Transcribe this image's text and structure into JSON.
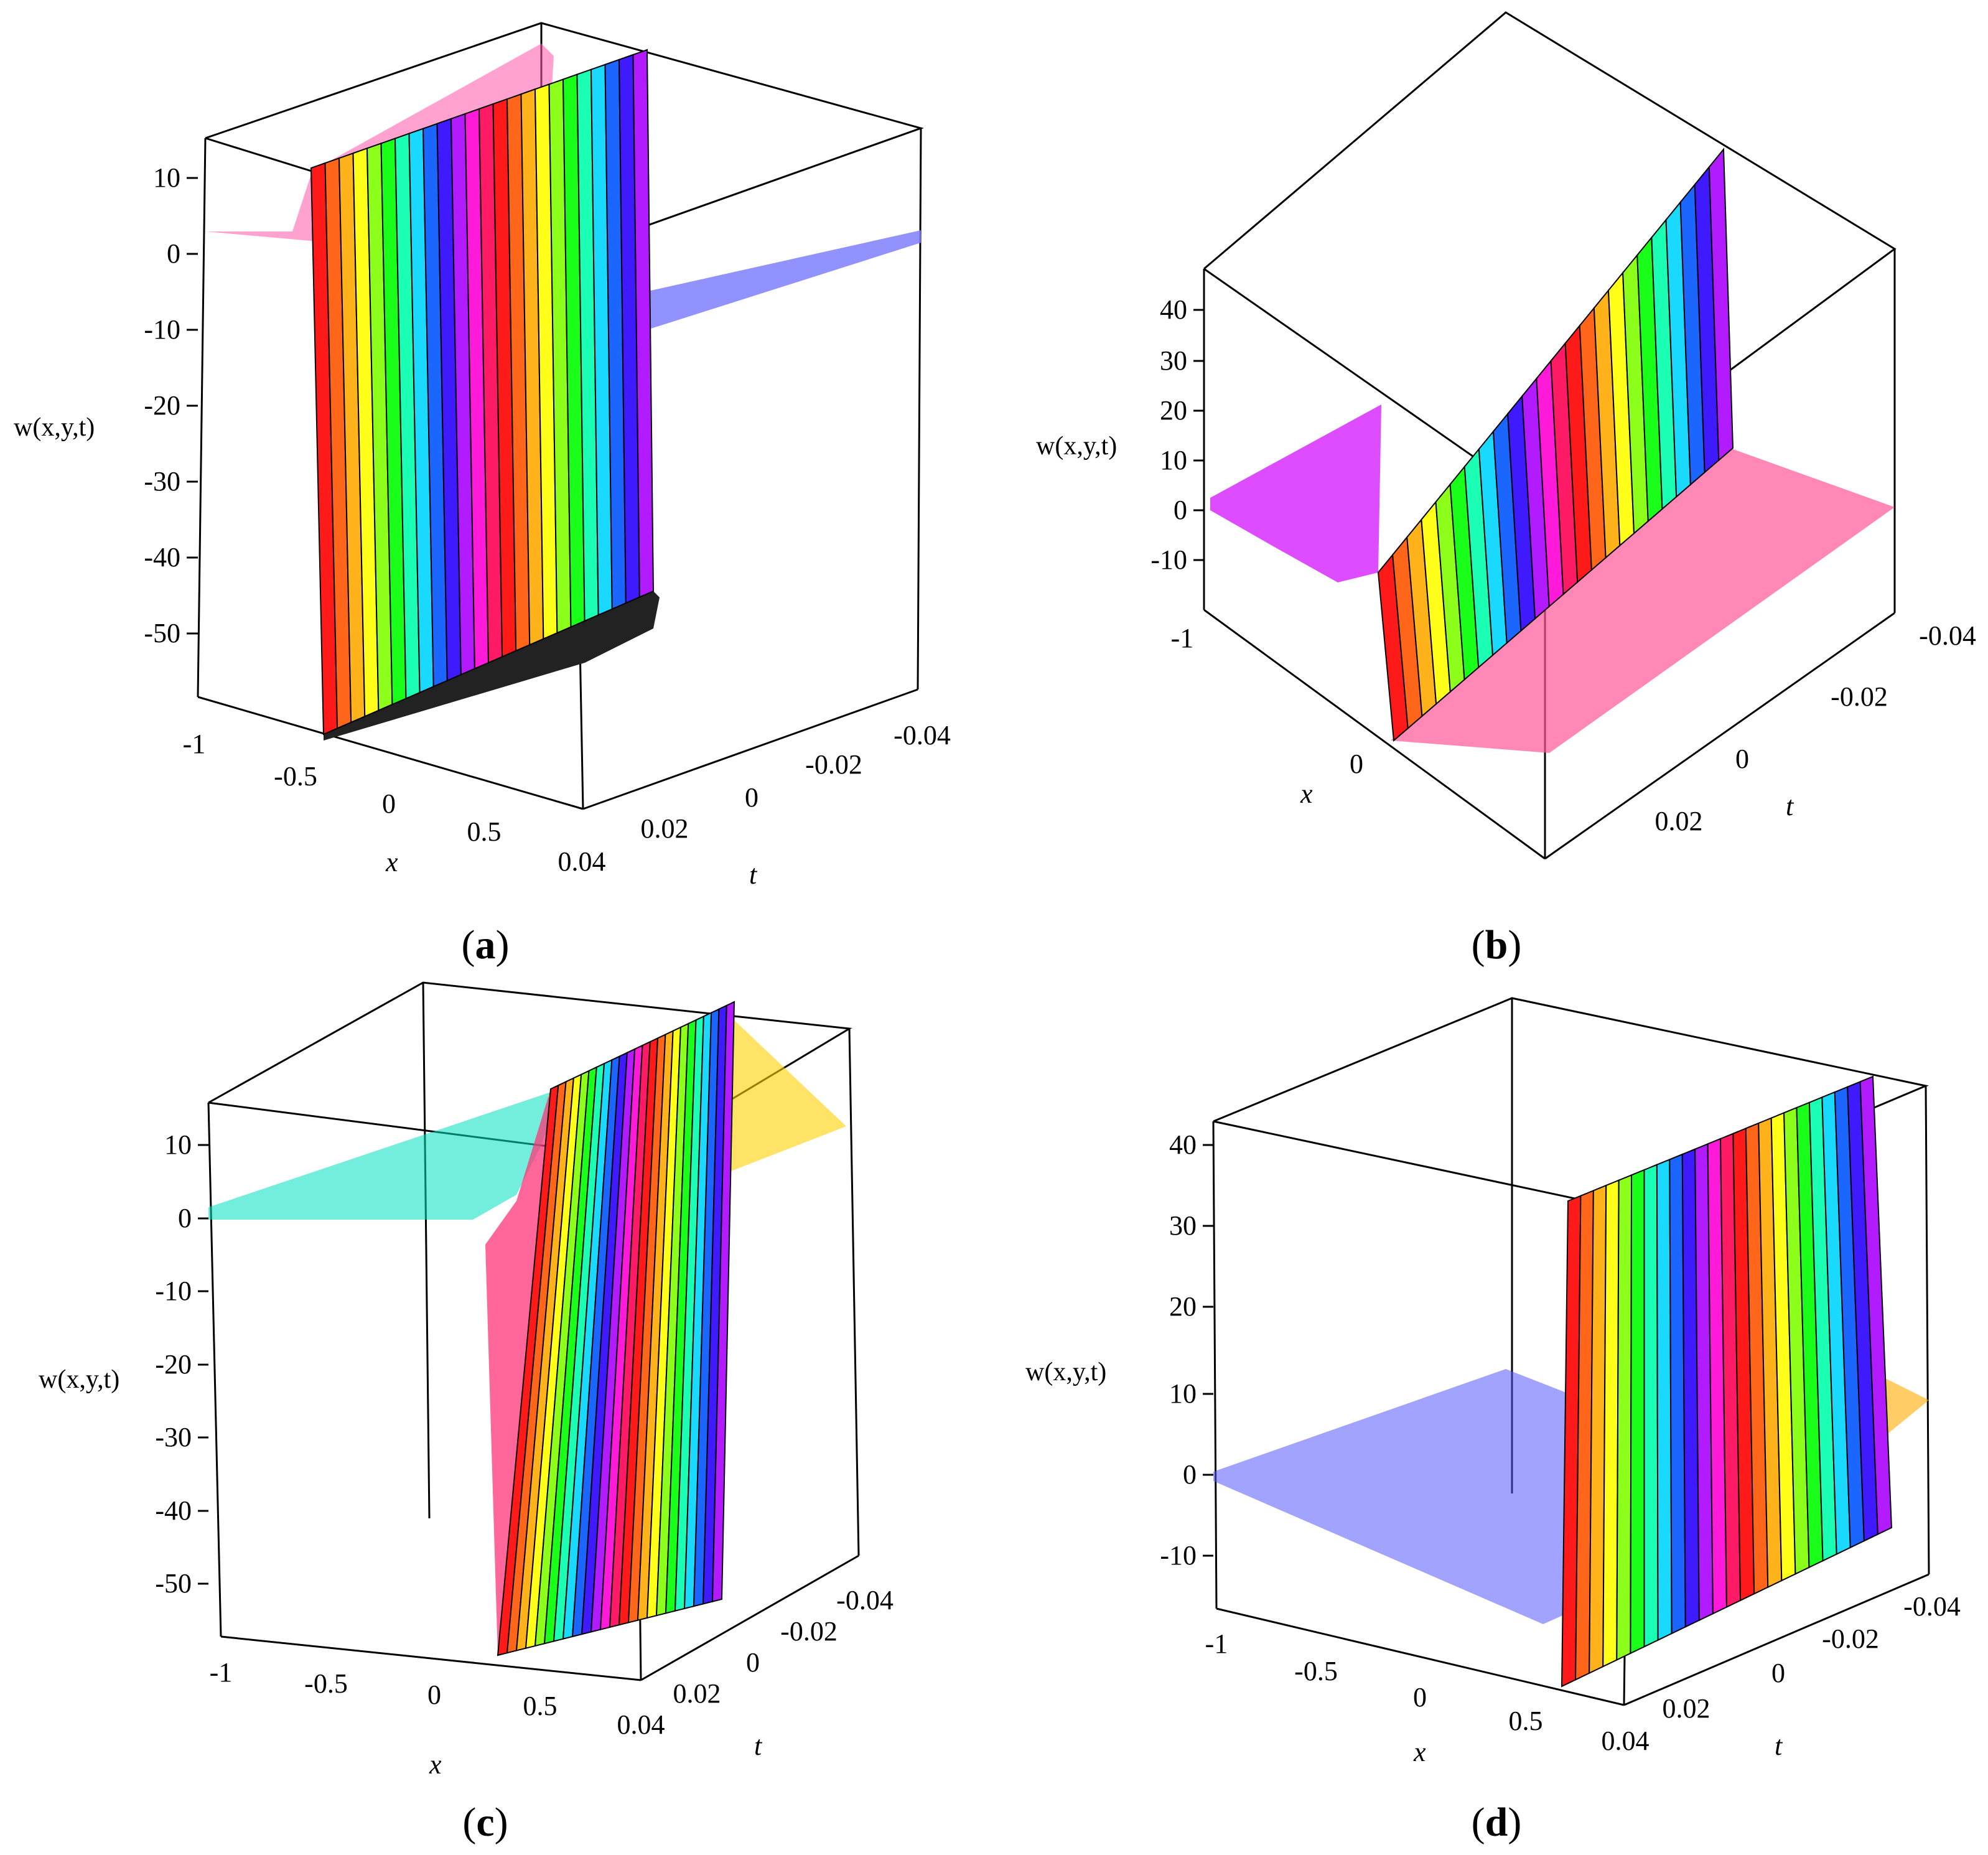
{
  "chart_data": [
    {
      "panel": "a",
      "type": "surface3d",
      "caption_letter": "a",
      "zlabel": "w(x,y,t)",
      "xlabel": "x",
      "tlabel": "t",
      "x_ticks": [
        "-1",
        "-0.5",
        "0",
        "0.5"
      ],
      "t_ticks": [
        "0.04",
        "0.02",
        "0",
        "-0.02",
        "-0.04"
      ],
      "z_ticks": [
        "10",
        "0",
        "-10",
        "-20",
        "-30",
        "-40",
        "-50"
      ],
      "x_range": [
        -1,
        1
      ],
      "t_range": [
        -0.04,
        0.04
      ],
      "z_range": [
        -58,
        15
      ],
      "kink_x": -0.35,
      "plateau_before": 1.5,
      "peak": 15,
      "trough": -57,
      "plateau_after": -3
    },
    {
      "panel": "b",
      "type": "surface3d",
      "caption_letter": "b",
      "zlabel": "w(x,y,t)",
      "xlabel": "x",
      "tlabel": "t",
      "x_ticks": [
        "-1",
        "0"
      ],
      "t_ticks": [
        "0.02",
        "0",
        "-0.02",
        "-0.04"
      ],
      "z_ticks": [
        "40",
        "30",
        "20",
        "10",
        "0",
        "-10"
      ],
      "x_range": [
        -1,
        1
      ],
      "t_range": [
        -0.04,
        0.04
      ],
      "z_range": [
        -14,
        42
      ],
      "kink_x": 0.05,
      "plateau_before": 1.5,
      "trough": -13,
      "peak": 41,
      "plateau_after": 3
    },
    {
      "panel": "c",
      "type": "surface3d",
      "caption_letter": "c",
      "zlabel": "w(x,y,t)",
      "xlabel": "x",
      "tlabel": "t",
      "x_ticks": [
        "-1",
        "-0.5",
        "0",
        "0.5"
      ],
      "t_ticks": [
        "0.04",
        "0.02",
        "0",
        "-0.02",
        "-0.04"
      ],
      "z_ticks": [
        "10",
        "0",
        "-10",
        "-20",
        "-30",
        "-40",
        "-50"
      ],
      "x_range": [
        -1,
        1
      ],
      "t_range": [
        -0.04,
        0.04
      ],
      "z_range": [
        -58,
        15
      ],
      "kink_x": 0.2,
      "plateau_before": 1.5,
      "trough": -57,
      "peak": 15,
      "plateau_after": 2
    },
    {
      "panel": "d",
      "type": "surface3d",
      "caption_letter": "d",
      "zlabel": "w(x,y,t)",
      "xlabel": "x",
      "tlabel": "t",
      "x_ticks": [
        "-1",
        "-0.5",
        "0",
        "0.5"
      ],
      "t_ticks": [
        "0.04",
        "0.02",
        "0",
        "-0.02",
        "-0.04"
      ],
      "z_ticks": [
        "40",
        "30",
        "20",
        "10",
        "0",
        "-10"
      ],
      "x_range": [
        -1,
        1
      ],
      "t_range": [
        -0.04,
        0.04
      ],
      "z_range": [
        -14,
        42
      ],
      "kink_x": 0.65,
      "plateau_before": 1.5,
      "trough": -14,
      "peak": 41,
      "plateau_after": 5
    }
  ]
}
